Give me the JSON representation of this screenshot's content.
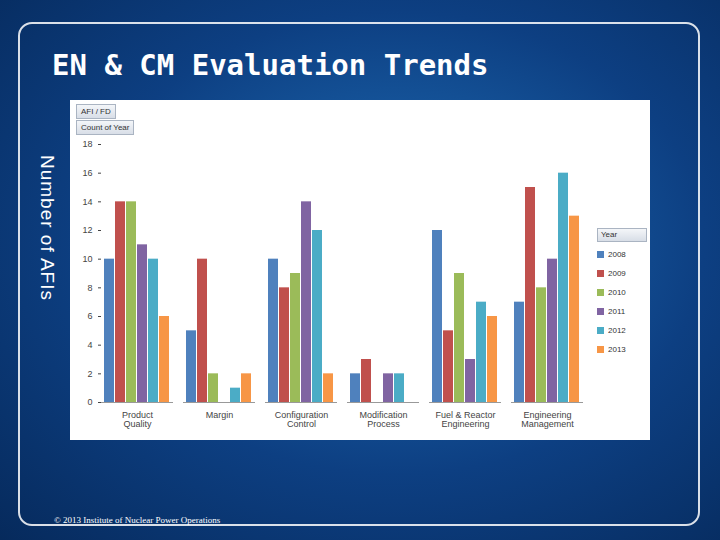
{
  "chart_data": {
    "type": "bar",
    "title": "EN & CM Evaluation Trends",
    "y_label": "Number of AFIs",
    "footer": "© 2013 Institute of Nuclear Power Operations",
    "filter_buttons": [
      "AFI / FD",
      "Count of Year"
    ],
    "legend_title": "Year",
    "legend": "right",
    "grid": false,
    "categories": [
      "Product Quality",
      "Margin",
      "Configuration Control",
      "Modification Process",
      "Fuel & Reactor Engineering",
      "Engineering Management"
    ],
    "series": [
      {
        "name": "2008",
        "color": "#4f81bd",
        "values": [
          10,
          5,
          10,
          2,
          12,
          7
        ]
      },
      {
        "name": "2009",
        "color": "#c0504d",
        "values": [
          14,
          10,
          8,
          3,
          5,
          15
        ]
      },
      {
        "name": "2010",
        "color": "#9bbb59",
        "values": [
          14,
          2,
          9,
          null,
          9,
          8
        ]
      },
      {
        "name": "2011",
        "color": "#8064a2",
        "values": [
          11,
          null,
          14,
          2,
          3,
          10
        ]
      },
      {
        "name": "2012",
        "color": "#4bacc6",
        "values": [
          10,
          1,
          12,
          2,
          7,
          16
        ]
      },
      {
        "name": "2013",
        "color": "#f79646",
        "values": [
          6,
          2,
          2,
          null,
          6,
          13
        ]
      }
    ],
    "ylim": [
      0,
      18
    ],
    "yticks": [
      0,
      2,
      4,
      6,
      8,
      10,
      12,
      14,
      16,
      18
    ]
  }
}
